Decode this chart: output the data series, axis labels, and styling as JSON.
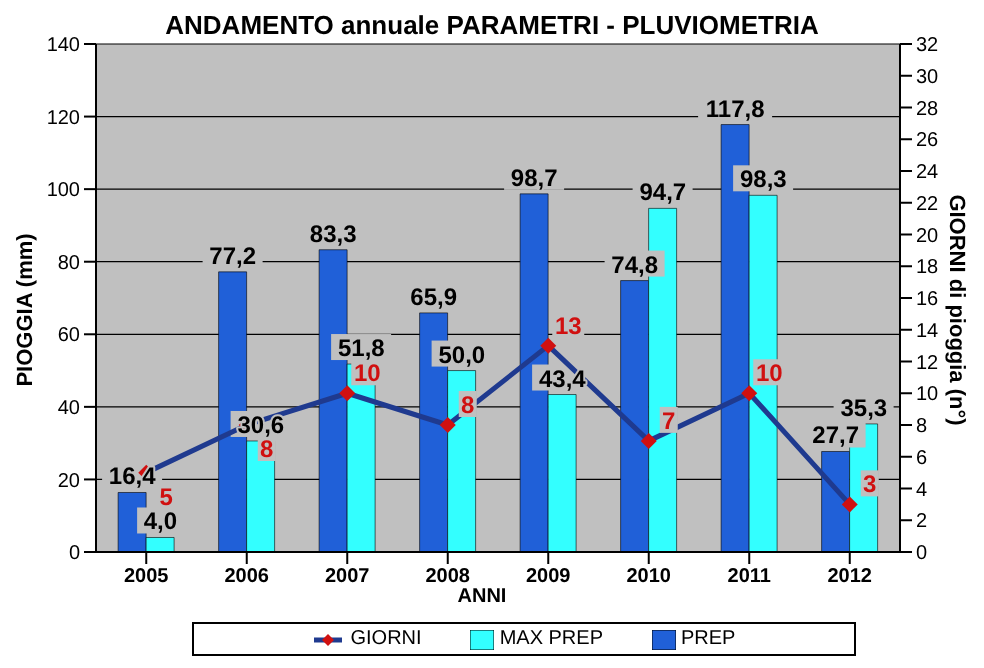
{
  "chart_data": {
    "type": "bar",
    "title": "ANDAMENTO annuale PARAMETRI - PLUVIOMETRIA",
    "xlabel": "ANNI",
    "ylabel": "PIOGGIA  (mm)",
    "y2label": "GIORNI di pioggia  (n°)",
    "categories": [
      "2005",
      "2006",
      "2007",
      "2008",
      "2009",
      "2010",
      "2011",
      "2012"
    ],
    "series": [
      {
        "name": "PREP",
        "color": "#2060d8",
        "values": [
          16.4,
          77.2,
          83.3,
          65.9,
          98.7,
          74.8,
          117.8,
          27.7
        ],
        "value_labels": [
          "16,4",
          "77,2",
          "83,3",
          "65,9",
          "98,7",
          "74,8",
          "117,8",
          "27,7"
        ]
      },
      {
        "name": "MAX PREP",
        "color": "#33ffff",
        "values": [
          4.0,
          30.6,
          51.8,
          50.0,
          43.4,
          94.7,
          98.3,
          35.3
        ],
        "value_labels": [
          "4,0",
          "30,6",
          "51,8",
          "50,0",
          "43,4",
          "94,7",
          "98,3",
          "35,3"
        ]
      },
      {
        "name": "GIORNI",
        "type": "line",
        "axis": "y2",
        "color": "#1f3a8f",
        "colors": [
          "#d01010",
          "#d01010",
          "#d01010",
          "#d01010",
          "#d01010",
          "#d01010",
          "#d01010",
          "#d01010"
        ],
        "values": [
          5,
          8,
          10,
          8,
          13,
          7,
          10,
          3
        ],
        "value_labels": [
          "5",
          "8",
          "10",
          "8",
          "13",
          "7",
          "10",
          "3"
        ]
      }
    ],
    "ylim": [
      0,
      140
    ],
    "yticks": [
      0,
      20,
      40,
      60,
      80,
      100,
      120,
      140
    ],
    "y2lim": [
      0,
      32
    ],
    "y2ticks": [
      0,
      2,
      4,
      6,
      8,
      10,
      12,
      14,
      16,
      18,
      20,
      22,
      24,
      26,
      28,
      30,
      32
    ],
    "grid": "y",
    "legend": "bottom",
    "marker": "diamond"
  }
}
